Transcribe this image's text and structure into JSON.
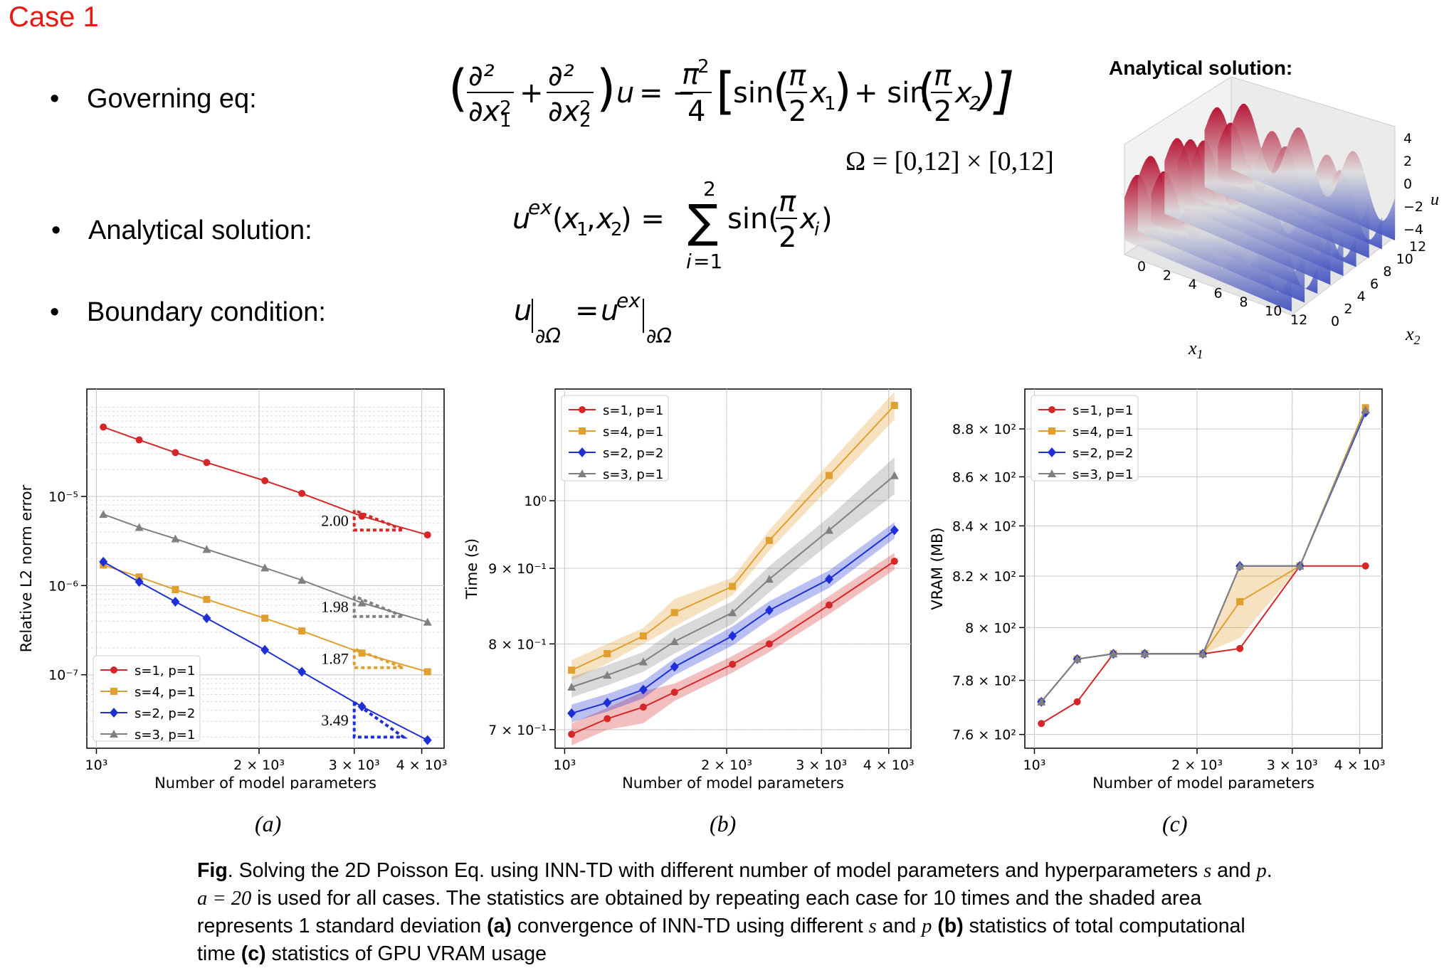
{
  "case_label": "Case 1",
  "bullets": [
    {
      "label": "Governing eq:",
      "top": 122
    },
    {
      "label": "Analytical solution:",
      "top": 305
    },
    {
      "label": "Boundary condition:",
      "top": 420
    }
  ],
  "equations": {
    "domain": "Ω = [0,12] × [0,12]"
  },
  "surface_plot": {
    "title": "Analytical solution:",
    "x_label": "x1",
    "y_label": "x2",
    "z_label": "u",
    "x_ticks": [
      "0",
      "2",
      "4",
      "6",
      "8",
      "10",
      "12"
    ],
    "y_ticks": [
      "0",
      "2",
      "4",
      "6",
      "8",
      "10",
      "12"
    ],
    "z_ticks": [
      "4",
      "2",
      "0",
      "−2",
      "−4"
    ]
  },
  "panel_tags": [
    "(a)",
    "(b)",
    "(c)"
  ],
  "caption": {
    "fig_label": "Fig",
    "text_1": ". Solving the 2D Poisson Eq. using INN-TD with different number of model parameters and hyperparameters ",
    "s_sym": "s",
    "and_1": " and ",
    "p_sym": "p",
    "text_2": ". ",
    "a_eq": "a = 20",
    "text_3": " is used for all cases. The statistics are obtained by repeating each case for 10 times and the shaded area represents 1 standard deviation ",
    "bold_a": "(a)",
    "text_4": " convergence of INN-TD using different ",
    "and_2": " and ",
    "bold_b": "(b)",
    "text_5": " statistics of total computational time ",
    "bold_c": "(c)",
    "text_6": " statistics of GPU VRAM usage"
  },
  "colors": {
    "s1p1": "#d62728",
    "s4p1": "#e0a030",
    "s2p2": "#1f2fd6",
    "s3p1": "#808080"
  },
  "chart_data": [
    {
      "type": "line",
      "xscale": "log",
      "yscale": "log",
      "xlim": [
        960,
        4400
      ],
      "ylim": [
        1.5e-08,
        0.00016
      ],
      "x_ticks": [
        {
          "v": 1000,
          "label": "10³"
        },
        {
          "v": 2000,
          "label": "2 × 10³"
        },
        {
          "v": 3000,
          "label": "3 × 10³"
        },
        {
          "v": 4000,
          "label": "4 × 10³"
        }
      ],
      "y_ticks": [
        {
          "v": 1e-05,
          "label": "10⁻⁵"
        },
        {
          "v": 1e-06,
          "label": "10⁻⁶"
        },
        {
          "v": 1e-07,
          "label": "10⁻⁷"
        }
      ],
      "xlabel": "Number of model parameters",
      "ylabel": "Relative L2 norm error",
      "grid": true,
      "legend": "bottom-left",
      "series": [
        {
          "name": "s=1, p=1",
          "color_key": "s1p1",
          "marker": "circle",
          "x": [
            1030,
            1200,
            1400,
            1600,
            2050,
            2400,
            3100,
            4100
          ],
          "y": [
            6e-05,
            4.3e-05,
            3.1e-05,
            2.4e-05,
            1.5e-05,
            1.08e-05,
            6e-06,
            3.7e-06
          ]
        },
        {
          "name": "s=4, p=1",
          "color_key": "s4p1",
          "marker": "square",
          "x": [
            1030,
            1200,
            1400,
            1600,
            2050,
            2400,
            3100,
            4100
          ],
          "y": [
            1.7e-06,
            1.25e-06,
            9e-07,
            7e-07,
            4.3e-07,
            3.1e-07,
            1.75e-07,
            1.08e-07
          ]
        },
        {
          "name": "s=2, p=2",
          "color_key": "s2p2",
          "marker": "diamond",
          "x": [
            1030,
            1200,
            1400,
            1600,
            2050,
            2400,
            3100,
            4100
          ],
          "y": [
            1.85e-06,
            1.1e-06,
            6.6e-07,
            4.3e-07,
            1.9e-07,
            1.08e-07,
            4.4e-08,
            1.85e-08
          ]
        },
        {
          "name": "s=3, p=1",
          "color_key": "s3p1",
          "marker": "triangle",
          "x": [
            1030,
            1200,
            1400,
            1600,
            2050,
            2400,
            3100,
            4100
          ],
          "y": [
            6.3e-06,
            4.5e-06,
            3.35e-06,
            2.55e-06,
            1.58e-06,
            1.15e-06,
            6.4e-07,
            3.9e-07
          ]
        }
      ],
      "slopes": [
        {
          "label": "2.00",
          "color_key": "s1p1",
          "x0": 3000,
          "x1": 3700,
          "y_top": 7e-06,
          "y_bot": 4.2e-06
        },
        {
          "label": "1.98",
          "color_key": "s3p1",
          "x0": 3000,
          "x1": 3700,
          "y_top": 7.6e-07,
          "y_bot": 4.5e-07
        },
        {
          "label": "1.87",
          "color_key": "s4p1",
          "x0": 3000,
          "x1": 3700,
          "y_top": 1.95e-07,
          "y_bot": 1.2e-07
        },
        {
          "label": "3.49",
          "color_key": "s2p2",
          "x0": 3000,
          "x1": 3700,
          "y_top": 4.9e-08,
          "y_bot": 2e-08
        }
      ]
    },
    {
      "type": "line",
      "xscale": "log",
      "yscale": "log",
      "xlim": [
        960,
        4400
      ],
      "ylim": [
        0.68,
        1.19
      ],
      "x_ticks": [
        {
          "v": 1000,
          "label": "10³"
        },
        {
          "v": 2000,
          "label": "2 × 10³"
        },
        {
          "v": 3000,
          "label": "3 × 10³"
        },
        {
          "v": 4000,
          "label": "4 × 10³"
        }
      ],
      "y_ticks": [
        {
          "v": 1.0,
          "label": "10⁰"
        },
        {
          "v": 0.9,
          "label": "9 × 10⁻¹"
        },
        {
          "v": 0.8,
          "label": "8 × 10⁻¹"
        },
        {
          "v": 0.7,
          "label": "7 × 10⁻¹"
        }
      ],
      "xlabel": "Number of model parameters",
      "ylabel": "Time (s)",
      "grid": true,
      "legend": "top-left",
      "series": [
        {
          "name": "s=1, p=1",
          "color_key": "s1p1",
          "marker": "circle",
          "x": [
            1030,
            1200,
            1400,
            1600,
            2050,
            2400,
            3100,
            4100
          ],
          "y": [
            0.695,
            0.712,
            0.725,
            0.742,
            0.775,
            0.8,
            0.85,
            0.91
          ],
          "std": [
            0.012,
            0.012,
            0.018,
            0.01,
            0.01,
            0.01,
            0.012,
            0.012
          ]
        },
        {
          "name": "s=4, p=1",
          "color_key": "s4p1",
          "marker": "square",
          "x": [
            1030,
            1200,
            1400,
            1600,
            2050,
            2400,
            3100,
            4100
          ],
          "y": [
            0.768,
            0.788,
            0.81,
            0.84,
            0.875,
            0.94,
            1.04,
            1.16
          ],
          "std": [
            0.012,
            0.012,
            0.01,
            0.018,
            0.012,
            0.015,
            0.02,
            0.025
          ]
        },
        {
          "name": "s=2, p=2",
          "color_key": "s2p2",
          "marker": "diamond",
          "x": [
            1030,
            1200,
            1400,
            1600,
            2050,
            2400,
            3100,
            4100
          ],
          "y": [
            0.718,
            0.73,
            0.745,
            0.772,
            0.81,
            0.843,
            0.885,
            0.955
          ],
          "std": [
            0.01,
            0.01,
            0.01,
            0.01,
            0.012,
            0.012,
            0.012,
            0.012
          ]
        },
        {
          "name": "s=3, p=1",
          "color_key": "s3p1",
          "marker": "triangle",
          "x": [
            1030,
            1200,
            1400,
            1600,
            2050,
            2400,
            3100,
            4100
          ],
          "y": [
            0.748,
            0.762,
            0.778,
            0.803,
            0.84,
            0.885,
            0.955,
            1.04
          ],
          "std": [
            0.012,
            0.012,
            0.012,
            0.015,
            0.015,
            0.018,
            0.02,
            0.03
          ]
        }
      ]
    },
    {
      "type": "line",
      "xscale": "log",
      "yscale": "log",
      "xlim": [
        960,
        4400
      ],
      "ylim": [
        755,
        897
      ],
      "x_ticks": [
        {
          "v": 1000,
          "label": "10³"
        },
        {
          "v": 2000,
          "label": "2 × 10³"
        },
        {
          "v": 3000,
          "label": "3 × 10³"
        },
        {
          "v": 4000,
          "label": "4 × 10³"
        }
      ],
      "y_ticks": [
        {
          "v": 880,
          "label": "8.8 × 10²"
        },
        {
          "v": 860,
          "label": "8.6 × 10²"
        },
        {
          "v": 840,
          "label": "8.4 × 10²"
        },
        {
          "v": 820,
          "label": "8.2 × 10²"
        },
        {
          "v": 800,
          "label": "8 × 10²"
        },
        {
          "v": 780,
          "label": "7.8 × 10²"
        },
        {
          "v": 760,
          "label": "7.6 × 10²"
        }
      ],
      "xlabel": "Number of model parameters",
      "ylabel": "VRAM (MB)",
      "grid": true,
      "legend": "top-left",
      "series": [
        {
          "name": "s=1, p=1",
          "color_key": "s1p1",
          "marker": "circle",
          "x": [
            1030,
            1200,
            1400,
            1600,
            2050,
            2400,
            3100,
            4100
          ],
          "y": [
            764,
            772,
            790,
            790,
            790,
            792,
            824,
            824
          ],
          "std": [
            0,
            0,
            0,
            0,
            0,
            0,
            0,
            0
          ]
        },
        {
          "name": "s=4, p=1",
          "color_key": "s4p1",
          "marker": "square",
          "x": [
            1030,
            1200,
            1400,
            1600,
            2050,
            2400,
            3100,
            4100
          ],
          "y": [
            772,
            788,
            790,
            790,
            790,
            810,
            824,
            889
          ],
          "std": [
            0,
            0,
            0,
            0,
            0,
            14,
            0,
            0
          ]
        },
        {
          "name": "s=2, p=2",
          "color_key": "s2p2",
          "marker": "diamond",
          "x": [
            1030,
            1200,
            1400,
            1600,
            2050,
            2400,
            3100,
            4100
          ],
          "y": [
            772,
            788,
            790,
            790,
            790,
            824,
            824,
            887
          ],
          "std": [
            0,
            0,
            0,
            0,
            0,
            0,
            0,
            0
          ]
        },
        {
          "name": "s=3, p=1",
          "color_key": "s3p1",
          "marker": "triangle",
          "x": [
            1030,
            1200,
            1400,
            1600,
            2050,
            2400,
            3100,
            4100
          ],
          "y": [
            772,
            788,
            790,
            790,
            790,
            824,
            824,
            888
          ],
          "std": [
            0,
            0,
            0,
            0,
            0,
            0,
            0,
            0
          ]
        }
      ]
    }
  ]
}
